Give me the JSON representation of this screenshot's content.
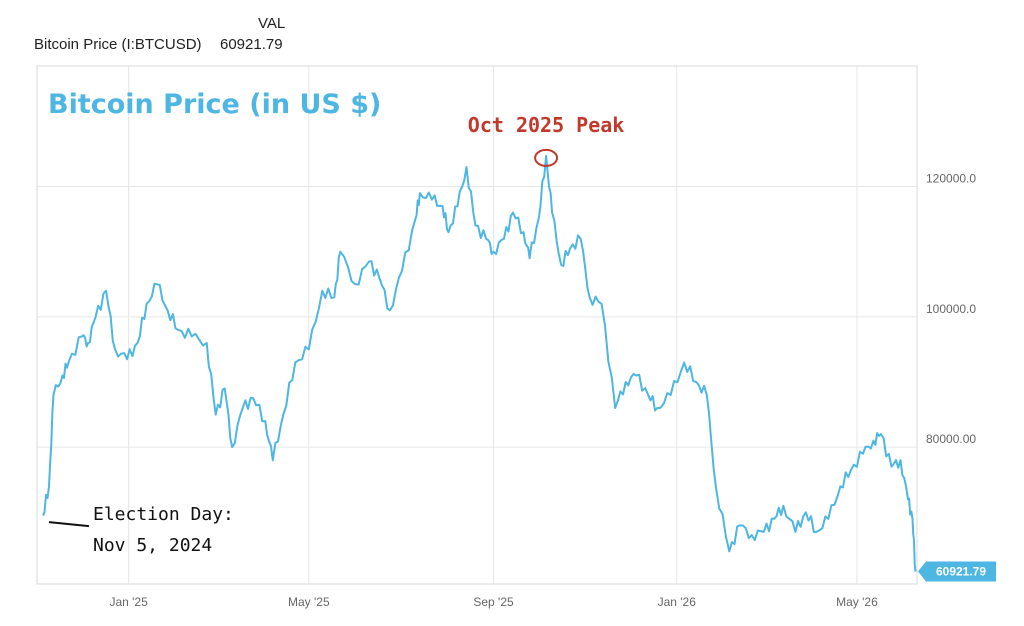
{
  "legend": {
    "column_header": "VAL",
    "series_name": "Bitcoin Price (I:BTCUSD)",
    "series_value": "60921.79"
  },
  "colors": {
    "line": "#4db6e2",
    "annotation": "#c0392b",
    "grid": "#e6e6e6",
    "axis_text": "#666666"
  },
  "chart_data": {
    "type": "line",
    "title": "Bitcoin Price (in US $)",
    "xlabel": "",
    "ylabel": "",
    "x_ticks": [
      "Jan '25",
      "May '25",
      "Sep '25",
      "Jan '26",
      "May '26"
    ],
    "y_ticks": [
      "120000.0",
      "100000.0",
      "80000.00"
    ],
    "ylim": [
      59000,
      138500
    ],
    "grid": true,
    "current_value_label": "60921.79",
    "annotations": [
      {
        "text": "Oct 2025 Peak",
        "x": "2025-10-06",
        "y": 124700
      },
      {
        "text": "Election Day:",
        "x": "2024-11-05",
        "y": 68500
      },
      {
        "text": "Nov 5, 2024",
        "x": "2024-11-05",
        "y": 68500
      }
    ],
    "series": [
      {
        "x": [
          "2024-11-05",
          "2024-11-09",
          "2024-11-12",
          "2024-11-18",
          "2024-11-22",
          "2024-12-01",
          "2024-12-05",
          "2024-12-10",
          "2024-12-17",
          "2024-12-23",
          "2024-12-31",
          "2025-01-07",
          "2025-01-13",
          "2025-01-20",
          "2025-01-27",
          "2025-02-03",
          "2025-02-12",
          "2025-02-22",
          "2025-02-28",
          "2025-03-06",
          "2025-03-11",
          "2025-03-18",
          "2025-03-25",
          "2025-04-02",
          "2025-04-07",
          "2025-04-14",
          "2025-04-22",
          "2025-05-01",
          "2025-05-10",
          "2025-05-18",
          "2025-05-22",
          "2025-06-01",
          "2025-06-10",
          "2025-06-17",
          "2025-06-24",
          "2025-07-02",
          "2025-07-11",
          "2025-07-14",
          "2025-07-22",
          "2025-07-29",
          "2025-08-02",
          "2025-08-08",
          "2025-08-14",
          "2025-08-20",
          "2025-08-27",
          "2025-09-01",
          "2025-09-08",
          "2025-09-14",
          "2025-09-21",
          "2025-09-25",
          "2025-10-01",
          "2025-10-06",
          "2025-10-10",
          "2025-10-16",
          "2025-10-22",
          "2025-10-29",
          "2025-11-04",
          "2025-11-12",
          "2025-11-21",
          "2025-11-28",
          "2025-12-05",
          "2025-12-13",
          "2025-12-19",
          "2025-12-28",
          "2026-01-06",
          "2026-01-14",
          "2026-01-21",
          "2026-01-27",
          "2026-02-05",
          "2026-02-12",
          "2026-02-20",
          "2026-02-28",
          "2026-03-07",
          "2026-03-13",
          "2026-03-21",
          "2026-03-28",
          "2026-04-04",
          "2026-04-12",
          "2026-04-20",
          "2026-04-27",
          "2026-05-05",
          "2026-05-12",
          "2026-05-17",
          "2026-05-24",
          "2026-05-30",
          "2026-06-04",
          "2026-06-07",
          "2026-06-09"
        ],
        "y": [
          69500,
          74000,
          88000,
          91000,
          93000,
          97000,
          96000,
          100000,
          104000,
          95000,
          93500,
          96000,
          102000,
          105000,
          101000,
          98000,
          97000,
          96000,
          85000,
          89000,
          80000,
          86000,
          87500,
          84000,
          78000,
          85000,
          93000,
          95000,
          104000,
          103000,
          110000,
          105000,
          108500,
          106000,
          101000,
          107000,
          115000,
          119000,
          118000,
          117000,
          113000,
          117000,
          123000,
          114000,
          112000,
          110000,
          112000,
          116000,
          113000,
          109000,
          115000,
          124700,
          116000,
          108000,
          110500,
          112000,
          103000,
          102000,
          86000,
          90000,
          91000,
          88000,
          86000,
          88000,
          93000,
          90000,
          88000,
          74000,
          64000,
          68000,
          66500,
          67000,
          69000,
          71000,
          67000,
          70000,
          67000,
          69000,
          74000,
          76500,
          79000,
          81000,
          82000,
          77000,
          78000,
          72000,
          69000,
          60921.79
        ]
      }
    ]
  }
}
